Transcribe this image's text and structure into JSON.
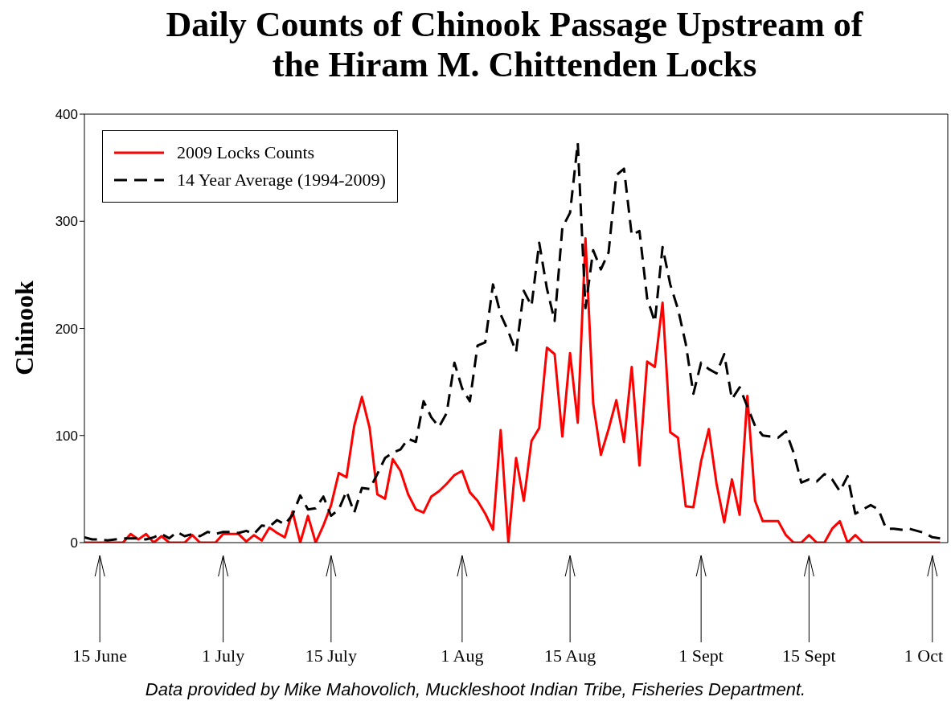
{
  "chart_data": {
    "type": "line",
    "title": "Daily Counts of Chinook Passage Upstream of the Hiram M. Chittenden Locks",
    "ylabel": "Chinook",
    "annotations": [
      "Data provided by Mike Mahovolich, Muckleshoot Indian Tribe, Fisheries Department."
    ],
    "x": [
      "--06-13",
      "--06-14",
      "--06-15",
      "--06-16",
      "--06-17",
      "--06-18",
      "--06-19",
      "--06-20",
      "--06-21",
      "--06-22",
      "--06-23",
      "--06-24",
      "--06-25",
      "--06-26",
      "--06-27",
      "--06-28",
      "--06-29",
      "--06-30",
      "--07-01",
      "--07-02",
      "--07-03",
      "--07-04",
      "--07-05",
      "--07-06",
      "--07-07",
      "--07-08",
      "--07-09",
      "--07-10",
      "--07-11",
      "--07-12",
      "--07-13",
      "--07-14",
      "--07-15",
      "--07-16",
      "--07-17",
      "--07-18",
      "--07-19",
      "--07-20",
      "--07-21",
      "--07-22",
      "--07-23",
      "--07-24",
      "--07-25",
      "--07-26",
      "--07-27",
      "--07-28",
      "--07-29",
      "--07-30",
      "--07-31",
      "--08-01",
      "--08-02",
      "--08-03",
      "--08-04",
      "--08-05",
      "--08-06",
      "--08-07",
      "--08-08",
      "--08-09",
      "--08-10",
      "--08-11",
      "--08-12",
      "--08-13",
      "--08-14",
      "--08-15",
      "--08-16",
      "--08-17",
      "--08-18",
      "--08-19",
      "--08-20",
      "--08-21",
      "--08-22",
      "--08-23",
      "--08-24",
      "--08-25",
      "--08-26",
      "--08-27",
      "--08-28",
      "--08-29",
      "--08-30",
      "--08-31",
      "--09-01",
      "--09-02",
      "--09-03",
      "--09-04",
      "--09-05",
      "--09-06",
      "--09-07",
      "--09-08",
      "--09-09",
      "--09-10",
      "--09-11",
      "--09-12",
      "--09-13",
      "--09-14",
      "--09-15",
      "--09-16",
      "--09-17",
      "--09-18",
      "--09-19",
      "--09-20",
      "--09-21",
      "--09-22",
      "--09-23",
      "--09-24",
      "--09-25",
      "--09-26",
      "--09-27",
      "--09-28",
      "--09-29",
      "--09-30",
      "--10-01",
      "--10-02"
    ],
    "series": [
      {
        "name": "2009 Locks Counts",
        "color": "#ff0000",
        "line_style": "solid",
        "values": [
          0,
          0,
          0,
          0,
          0,
          0,
          8,
          3,
          8,
          0,
          6,
          0,
          0,
          0,
          7,
          0,
          0,
          0,
          8,
          8,
          8,
          1,
          7,
          2,
          14,
          9,
          5,
          29,
          0,
          25,
          0,
          16,
          35,
          65,
          61,
          109,
          136,
          107,
          45,
          41,
          78,
          67,
          45,
          31,
          28,
          43,
          48,
          55,
          63,
          67,
          47,
          39,
          27,
          12,
          105,
          0,
          79,
          39,
          95,
          107,
          182,
          176,
          99,
          177,
          112,
          284,
          130,
          82,
          106,
          133,
          94,
          164,
          72,
          169,
          164,
          224,
          103,
          98,
          34,
          33,
          76,
          106,
          55,
          19,
          59,
          26,
          137,
          39,
          20,
          20,
          20,
          7,
          0,
          0,
          7,
          0,
          0,
          13,
          20,
          0,
          7,
          0,
          0,
          0,
          0,
          0,
          0,
          0,
          0,
          0,
          0,
          0
        ]
      },
      {
        "name": "14 Year Average (1994-2009)",
        "color": "#000000",
        "line_style": "dashed",
        "values": [
          5,
          3,
          3,
          2,
          3,
          4,
          4,
          4,
          3,
          5,
          8,
          4,
          10,
          6,
          8,
          6,
          10,
          8,
          10,
          10,
          9,
          11,
          8,
          16,
          15,
          21,
          17,
          26,
          44,
          31,
          32,
          43,
          25,
          31,
          48,
          28,
          51,
          50,
          64,
          79,
          84,
          87,
          97,
          94,
          132,
          117,
          108,
          121,
          168,
          144,
          132,
          184,
          187,
          241,
          213,
          197,
          178,
          235,
          221,
          280,
          237,
          207,
          294,
          308,
          373,
          219,
          273,
          255,
          271,
          343,
          349,
          287,
          291,
          228,
          206,
          276,
          241,
          218,
          186,
          139,
          168,
          162,
          158,
          176,
          134,
          145,
          127,
          109,
          100,
          99,
          98,
          104,
          84,
          56,
          59,
          57,
          64,
          59,
          48,
          62,
          27,
          31,
          35,
          31,
          13,
          13,
          12,
          13,
          11,
          9,
          5,
          4
        ]
      }
    ],
    "xlim": [
      "--06-13",
      "--10-03"
    ],
    "xticks": [
      {
        "value": "--06-15",
        "label": "15 June"
      },
      {
        "value": "--07-01",
        "label": "1 July"
      },
      {
        "value": "--07-15",
        "label": "15 July"
      },
      {
        "value": "--08-01",
        "label": "1 Aug"
      },
      {
        "value": "--08-15",
        "label": "15 Aug"
      },
      {
        "value": "--09-01",
        "label": "1 Sept"
      },
      {
        "value": "--09-15",
        "label": "15 Sept"
      },
      {
        "value": "--10-01",
        "label": "1 Oct"
      }
    ],
    "ylim": [
      0,
      400
    ],
    "yticks": [
      0,
      100,
      200,
      300,
      400
    ],
    "marker": "none",
    "legend": "top left"
  }
}
